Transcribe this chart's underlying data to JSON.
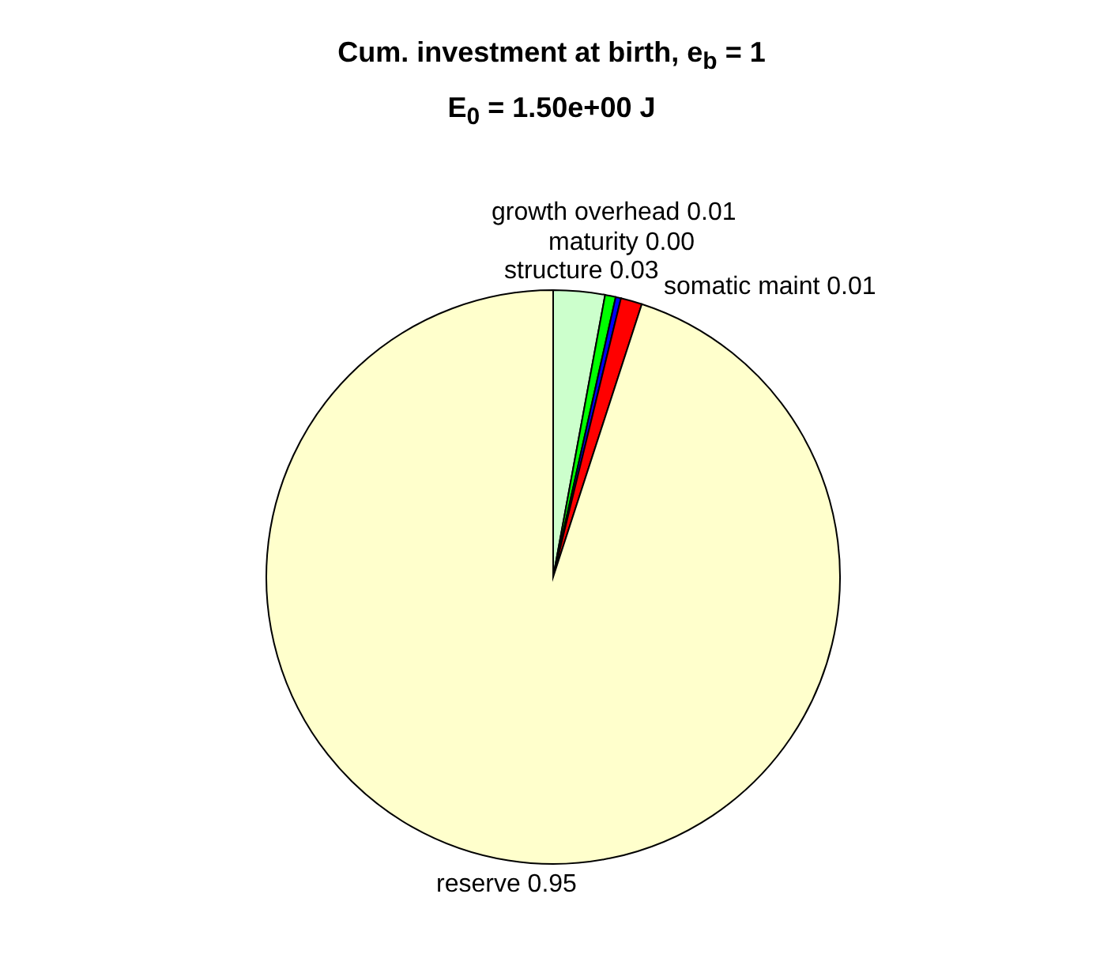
{
  "chart_data": {
    "type": "pie",
    "title": "Cum. investment at birth, e$_{b}$ = 1",
    "subtitle": "E$_{0}$ = 1.50e+00 J",
    "categories": [
      "structure",
      "growth overhead",
      "maturity",
      "somatic maint",
      "reserve"
    ],
    "values": [
      0.029,
      0.006,
      0.003,
      0.012,
      0.95
    ],
    "colors": [
      "#ccffcc",
      "#00ff00",
      "#0000ff",
      "#ff0000",
      "#ffffcc"
    ],
    "value_labels": [
      "0.03",
      "0.01",
      "0.00",
      "0.01",
      "0.95"
    ]
  }
}
